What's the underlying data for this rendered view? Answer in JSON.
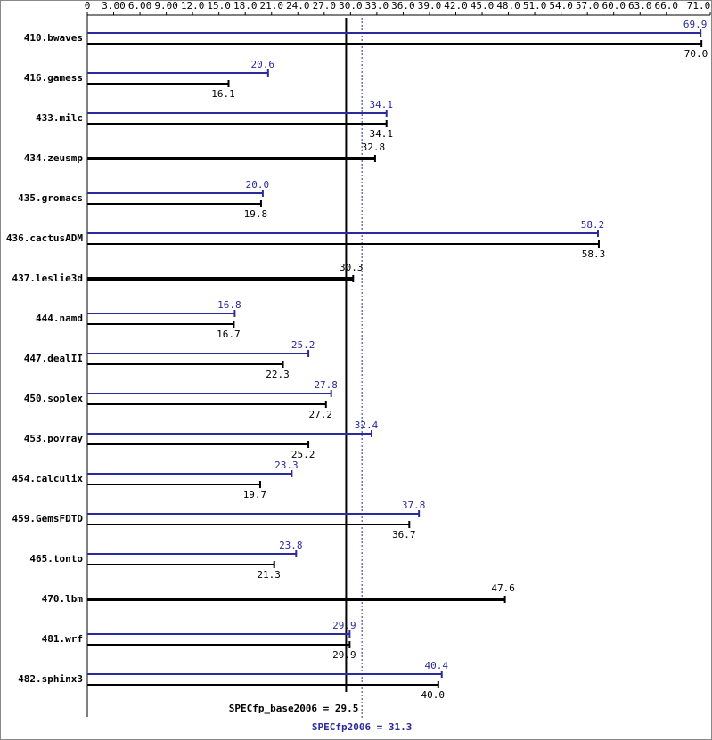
{
  "chart_data": {
    "type": "hbar",
    "categories": [
      "410.bwaves",
      "416.gamess",
      "433.milc",
      "434.zeusmp",
      "435.gromacs",
      "436.cactusADM",
      "437.leslie3d",
      "444.namd",
      "447.dealII",
      "450.soplex",
      "453.povray",
      "454.calculix",
      "459.GemsFDTD",
      "465.tonto",
      "470.lbm",
      "481.wrf",
      "482.sphinx3"
    ],
    "series": [
      {
        "color": "#2b2b9e",
        "values": [
          69.9,
          20.6,
          34.1,
          null,
          20.0,
          58.2,
          null,
          16.8,
          25.2,
          27.8,
          32.4,
          23.3,
          37.8,
          23.8,
          null,
          29.9,
          40.4
        ],
        "value_labels": [
          "69.9",
          "20.6",
          "34.1",
          null,
          "20.0",
          "58.2",
          null,
          "16.8",
          "25.2",
          "27.8",
          "32.4",
          "23.3",
          "37.8",
          "23.8",
          null,
          "29.9",
          "40.4"
        ]
      },
      {
        "color": "#000000",
        "values": [
          70.0,
          16.1,
          34.1,
          32.8,
          19.8,
          58.3,
          30.3,
          16.7,
          22.3,
          27.2,
          25.2,
          19.7,
          36.7,
          21.3,
          47.6,
          29.9,
          40.0
        ],
        "value_labels": [
          "70.0",
          "16.1",
          "34.1",
          "32.8",
          "19.8",
          "58.3",
          "30.3",
          "16.7",
          "22.3",
          "27.2",
          "25.2",
          "19.7",
          "36.7",
          "21.3",
          "47.6",
          "29.9",
          "40.0"
        ]
      }
    ],
    "xlim": [
      0,
      71
    ],
    "xticks": [
      0,
      {
        "value": 3,
        "label": "3.00"
      },
      {
        "value": 6,
        "label": "6.00"
      },
      {
        "value": 9,
        "label": "9.00"
      },
      {
        "value": 12,
        "label": "12.0"
      },
      {
        "value": 15,
        "label": "15.0"
      },
      {
        "value": 18,
        "label": "18.0"
      },
      {
        "value": 21,
        "label": "21.0"
      },
      {
        "value": 24,
        "label": "24.0"
      },
      {
        "value": 27,
        "label": "27.0"
      },
      {
        "value": 30,
        "label": "30.0"
      },
      {
        "value": 33,
        "label": "33.0"
      },
      {
        "value": 36,
        "label": "36.0"
      },
      {
        "value": 39,
        "label": "39.0"
      },
      {
        "value": 42,
        "label": "42.0"
      },
      {
        "value": 45,
        "label": "45.0"
      },
      {
        "value": 48,
        "label": "48.0"
      },
      {
        "value": 51,
        "label": "51.0"
      },
      {
        "value": 54,
        "label": "54.0"
      },
      {
        "value": 57,
        "label": "57.0"
      },
      {
        "value": 60,
        "label": "60.0"
      },
      {
        "value": 63,
        "label": "63.0"
      },
      {
        "value": 66,
        "label": "66.0"
      },
      {
        "value": 71,
        "label": "71.0"
      }
    ],
    "reference_lines": [
      {
        "value": 29.5,
        "label": "SPECfp_base2006 = 29.5",
        "color": "#000000",
        "style": "solid"
      },
      {
        "value": 31.3,
        "label": "SPECfp2006 = 31.3",
        "color": "#2b2b9e",
        "style": "dotted"
      }
    ]
  }
}
